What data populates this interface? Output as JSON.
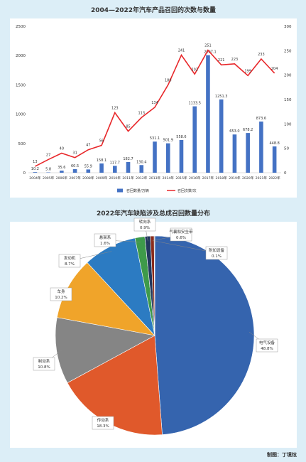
{
  "chart_data": [
    {
      "type": "bar_line",
      "title": "2004—2022年汽车产品召回的次数与数量",
      "categories": [
        "2004年",
        "2005年",
        "2006年",
        "2007年",
        "2008年",
        "2009年",
        "2010年",
        "2011年",
        "2012年",
        "2013年",
        "2014年",
        "2015年",
        "2016年",
        "2017年",
        "2018年",
        "2019年",
        "2020年",
        "2021年",
        "2022年"
      ],
      "series": [
        {
          "name": "召回数量/万辆",
          "type": "bar",
          "color": "#4472c4",
          "values": [
            10.2,
            5.8,
            35.6,
            60.5,
            55.9,
            158.1,
            117.7,
            182.7,
            130.4,
            531.1,
            501.9,
            558.6,
            1133.5,
            2007.1,
            1251.3,
            653,
            678.2,
            873.6,
            448.8
          ],
          "value_labels": [
            "10.2",
            "5.8",
            "35.6",
            "60.5",
            "55.9",
            "158.1",
            "117.7",
            "182.7",
            "130.4",
            "531.1",
            "501.9",
            "558.6",
            "1133.5",
            "2007.1",
            "1251.3",
            "653.0",
            "678.2",
            "873.6",
            "448.8"
          ]
        },
        {
          "name": "召回次数/次",
          "type": "line",
          "axis": "y2",
          "color": "#e8272a",
          "values": [
            13,
            27,
            40,
            31,
            47,
            56,
            123,
            85,
            113,
            134,
            180,
            241,
            202,
            251,
            221,
            223,
            199,
            233,
            204
          ]
        }
      ],
      "ylim": [
        0,
        2500
      ],
      "yticks": [
        0,
        500,
        1000,
        1500,
        2000,
        2500
      ],
      "y2lim": [
        0,
        300
      ],
      "y2ticks": [
        0,
        50,
        100,
        150,
        200,
        250,
        300
      ],
      "grid": false,
      "legend": "bottom"
    },
    {
      "type": "pie",
      "title": "2022年汽车缺陷涉及总成召回数量分布",
      "categories": [
        "电气设备",
        "传动系",
        "制动系",
        "车身",
        "发动机",
        "悬架系",
        "转向系",
        "气囊和安全带",
        "附加设备"
      ],
      "values": [
        48.8,
        18.3,
        10.8,
        10.2,
        8.7,
        1.6,
        0.9,
        0.6,
        0.1
      ],
      "value_labels": [
        "48.8%",
        "18.3%",
        "10.8%",
        "10.2%",
        "8.7%",
        "1.6%",
        "0.9%",
        "0.6%",
        "0.1%"
      ],
      "colors": [
        "#3564ae",
        "#e0592b",
        "#858585",
        "#f0a42a",
        "#2c7bc2",
        "#3e9a4a",
        "#22385e",
        "#8a2c1c",
        "#4a4a4a"
      ]
    }
  ],
  "credit": "制图：丁境炫"
}
